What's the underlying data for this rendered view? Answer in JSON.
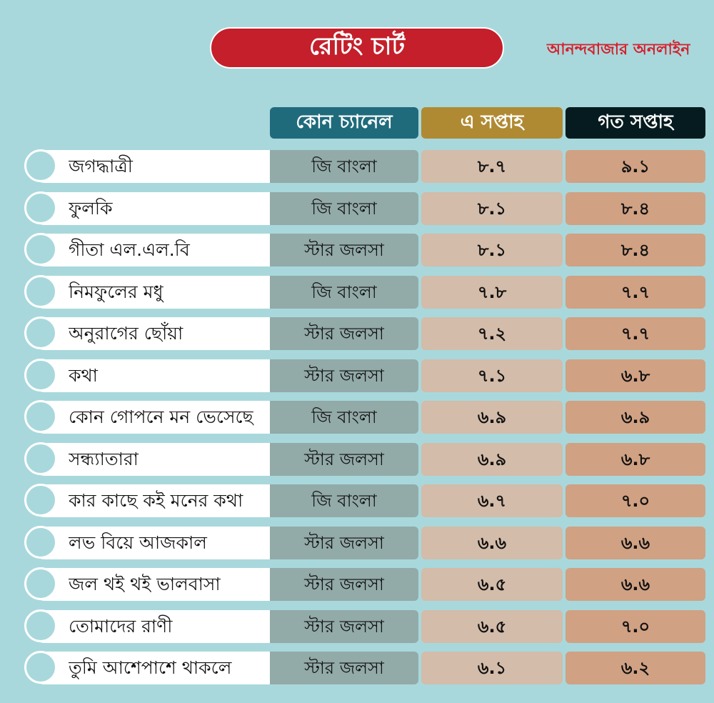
{
  "header": {
    "title": "রেটিং চার্ট",
    "brand": "আনন্দবাজার অনলাইন"
  },
  "chart_data": {
    "type": "table",
    "columns": [
      "কোন চ্যানেল",
      "এ সপ্তাহ",
      "গত সপ্তাহ"
    ],
    "rows": [
      {
        "name": "জগদ্ধাত্রী",
        "channel": "জি বাংলা",
        "this_week": "৮.৭",
        "last_week": "৯.১"
      },
      {
        "name": "ফুলকি",
        "channel": "জি বাংলা",
        "this_week": "৮.১",
        "last_week": "৮.৪"
      },
      {
        "name": "গীতা এল.এল.বি",
        "channel": "স্টার জলসা",
        "this_week": "৮.১",
        "last_week": "৮.৪"
      },
      {
        "name": "নিমফুলের মধু",
        "channel": "জি বাংলা",
        "this_week": "৭.৮",
        "last_week": "৭.৭"
      },
      {
        "name": "অনুরাগের ছোঁয়া",
        "channel": "স্টার জলসা",
        "this_week": "৭.২",
        "last_week": "৭.৭"
      },
      {
        "name": "কথা",
        "channel": "স্টার জলসা",
        "this_week": "৭.১",
        "last_week": "৬.৮"
      },
      {
        "name": "কোন গোপনে মন ভেসেছে",
        "channel": "জি বাংলা",
        "this_week": "৬.৯",
        "last_week": "৬.৯"
      },
      {
        "name": "সন্ধ্যাতারা",
        "channel": "স্টার জলসা",
        "this_week": "৬.৯",
        "last_week": "৬.৮"
      },
      {
        "name": "কার কাছে কই মনের কথা",
        "channel": "জি বাংলা",
        "this_week": "৬.৭",
        "last_week": "৭.০"
      },
      {
        "name": "লভ বিয়ে আজকাল",
        "channel": "স্টার জলসা",
        "this_week": "৬.৬",
        "last_week": "৬.৬"
      },
      {
        "name": "জল থই থই ভালবাসা",
        "channel": "স্টার জলসা",
        "this_week": "৬.৫",
        "last_week": "৬.৬"
      },
      {
        "name": "তোমাদের রাণী",
        "channel": "স্টার জলসা",
        "this_week": "৬.৫",
        "last_week": "৭.০"
      },
      {
        "name": "তুমি আশেপাশে থাকলে",
        "channel": "স্টার জলসা",
        "this_week": "৬.১",
        "last_week": "৬.২"
      }
    ]
  },
  "colors": {
    "background": "#a8d8dc",
    "title_pill": "#c41f2a",
    "brand": "#d6202c",
    "channel_header": "#1f6b7c",
    "this_week_header": "#b08a33",
    "last_week_header": "#061b1f"
  }
}
